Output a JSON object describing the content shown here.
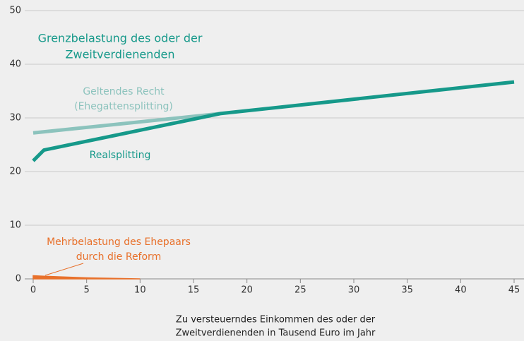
{
  "chart_data": {
    "type": "line",
    "title": [
      "Grenzbelastung des oder der",
      "Zweitverdienenden"
    ],
    "xlabel": [
      "Zu versteuerndes Einkommen des oder der",
      "Zweitverdienenden in Tausend Euro im Jahr"
    ],
    "xlim": [
      0,
      45
    ],
    "xticks": [
      0,
      5,
      10,
      15,
      20,
      25,
      30,
      35,
      40,
      45
    ],
    "ylim": [
      0,
      50
    ],
    "yticks": [
      0,
      10,
      20,
      30,
      40,
      50
    ],
    "grid": true,
    "series": [
      {
        "name": [
          "Geltendes Recht",
          "(Ehegattensplitting)"
        ],
        "color": "#8cc3bd",
        "x": [
          0,
          17.5
        ],
        "values": [
          27.2,
          30.8
        ]
      },
      {
        "name": [
          "Realsplitting"
        ],
        "color": "#16998a",
        "x": [
          0,
          1,
          17.5,
          45
        ],
        "values": [
          22,
          24,
          30.8,
          36.7
        ]
      },
      {
        "name": [
          "Mehrbelastung des Ehepaars",
          "durch die Reform"
        ],
        "color": "#e8702a",
        "fill": true,
        "x": [
          0,
          1,
          5,
          10
        ],
        "values": [
          0.6,
          0.5,
          0.2,
          0
        ]
      }
    ]
  }
}
